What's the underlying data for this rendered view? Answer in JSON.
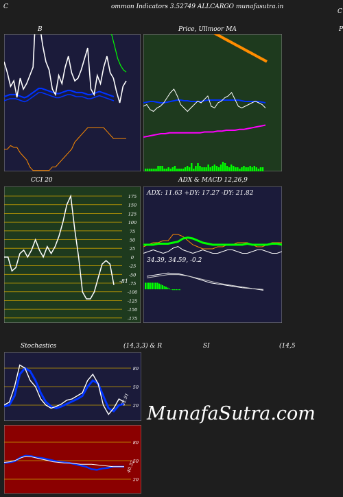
{
  "header": {
    "left_mark": "C",
    "title": "ommon  Indicators 3.52749 ALLCARGO munafasutra.in",
    "right_mark": "C"
  },
  "labels": {
    "bb_left": "B",
    "price_ma": "Price,  Ullmoor  MA",
    "price_ma_right": "P",
    "cci": "CCI 20",
    "adx_macd": "ADX  & MACD 12,26,9",
    "stoch_title": "Stochastics",
    "stoch_params": "(14,3,3) & R",
    "rsi_title": "SI",
    "rsi_params": "(14,5",
    "watermark": "MunafaSutra.com"
  },
  "colors": {
    "panel_dark": "#1b1b3a",
    "panel_green": "#1e3a1e",
    "panel_red": "#8b0000",
    "orange": "#ff8c00",
    "blue": "#0033ff",
    "bright_green": "#00ff00",
    "white": "#ffffff"
  },
  "chart_data": [
    {
      "type": "line",
      "panel": "bollinger",
      "series": [
        {
          "name": "",
          "color": "#ffffff",
          "values": [
            38,
            34,
            29,
            31,
            25,
            32,
            28,
            30,
            33,
            36,
            60,
            52,
            44,
            38,
            35,
            28,
            26,
            33,
            30,
            36,
            40,
            34,
            31,
            32,
            35,
            39,
            43,
            28,
            26,
            33,
            30,
            36,
            40,
            34,
            32,
            27,
            23,
            29,
            31
          ]
        },
        {
          "name": "",
          "color": "#0033ff",
          "values": [
            33,
            33.5,
            34,
            34,
            34,
            33.5,
            33,
            32.5,
            33,
            34,
            35,
            36,
            37,
            37,
            36.5,
            36,
            35.5,
            35,
            34.5,
            34.5,
            35,
            35.5,
            36,
            36,
            35.5,
            35,
            35,
            35,
            34.5,
            34,
            34,
            34.5,
            35,
            35.5,
            35,
            34.5,
            34,
            33.5,
            33
          ]
        },
        {
          "name": "",
          "color": "#0033ff",
          "values": [
            31,
            31.5,
            32,
            32,
            32,
            31.5,
            31,
            30.5,
            31,
            32,
            33,
            34,
            35,
            35,
            34.5,
            34,
            33.5,
            33,
            32.5,
            32.5,
            33,
            33.5,
            34,
            34,
            33.5,
            33,
            33,
            33,
            32.5,
            32,
            32,
            32.5,
            33,
            33.5,
            33,
            32.5,
            32,
            31.5,
            31
          ]
        },
        {
          "name": "",
          "color": "#00ff00",
          "values": [
            70,
            69,
            68,
            67,
            66,
            64,
            62,
            60,
            58,
            57,
            56,
            57,
            58,
            59,
            60,
            60,
            60,
            60,
            60,
            60,
            60,
            60,
            60,
            60,
            60,
            60,
            60,
            60,
            60,
            60,
            60,
            59,
            58,
            55,
            50,
            45,
            42,
            40,
            39
          ]
        },
        {
          "name": "",
          "color": "#ff8c00",
          "values": [
            12,
            12,
            13,
            12.5,
            12.5,
            11,
            10,
            9,
            7,
            6,
            6,
            6,
            6,
            6,
            6,
            7,
            7,
            8,
            9,
            10,
            11,
            12,
            14,
            15,
            16,
            17,
            18,
            18,
            18,
            18,
            18,
            18,
            17,
            16,
            15,
            15,
            15,
            15,
            15
          ]
        }
      ]
    },
    {
      "type": "line",
      "panel": "price_ma",
      "series": [
        {
          "name": "",
          "color": "#ffffff",
          "values": [
            30,
            31,
            28,
            27,
            29,
            30,
            32,
            35,
            38,
            40,
            36,
            31,
            29,
            27,
            29,
            31,
            33,
            32,
            34,
            36,
            30,
            29,
            32,
            33,
            35,
            36,
            38,
            34,
            30,
            29,
            30,
            31,
            32,
            33,
            32,
            31,
            29
          ]
        },
        {
          "name": "",
          "color": "#0033ff",
          "values": [
            30,
            30.5,
            31,
            31,
            30.5,
            30,
            30,
            30.5,
            31,
            31.5,
            32,
            32,
            31.5,
            31.5,
            31,
            31,
            31,
            31,
            31.5,
            32,
            32,
            32,
            32,
            32,
            32,
            32,
            32,
            32,
            32,
            31.5,
            31,
            31,
            31,
            31,
            31,
            30.5,
            30
          ]
        },
        {
          "name": "",
          "color": "#ff8c00",
          "values": [
            62,
            61,
            60,
            59,
            58,
            57,
            56,
            55,
            54,
            53,
            52,
            51,
            50,
            49,
            48,
            47,
            46,
            45,
            44,
            43,
            42,
            41,
            40,
            39,
            38,
            37,
            36,
            35,
            34,
            33
          ]
        },
        {
          "name": "",
          "color": "#ff00ff",
          "values": [
            20,
            20.5,
            21,
            21.5,
            22,
            22,
            22.5,
            22.5,
            22.5,
            22.5,
            22.5,
            22.5,
            22.5,
            22.5,
            23,
            23,
            23,
            23.5,
            23.5,
            24,
            24,
            24,
            24.5,
            24.5,
            25,
            25.5,
            26,
            26.5,
            27
          ]
        }
      ]
    },
    {
      "type": "line",
      "panel": "cci",
      "y_ticks": [
        175,
        150,
        125,
        100,
        75,
        50,
        25,
        0,
        -25,
        -50,
        -75,
        -100,
        -125,
        -150,
        -175
      ],
      "series": [
        {
          "name": "",
          "color": "#ffffff",
          "values": [
            0,
            0,
            -40,
            -30,
            10,
            20,
            0,
            20,
            50,
            20,
            0,
            30,
            10,
            30,
            60,
            100,
            150,
            175,
            80,
            0,
            -100,
            -120,
            -120,
            -100,
            -60,
            -20,
            -10,
            -20,
            -80
          ]
        }
      ],
      "last_value_label": "-81"
    },
    {
      "type": "line",
      "panel": "adx",
      "readout": "ADX: 11.63  +DY: 17.27  -DY: 21.82",
      "series": [
        {
          "name": "",
          "color": "#00ff00",
          "values": [
            20,
            20,
            20,
            21,
            21,
            21,
            22,
            23,
            26,
            27,
            26,
            24,
            22,
            21,
            20,
            20,
            20,
            20,
            20,
            20,
            20,
            21,
            20,
            20,
            20,
            20,
            21,
            21,
            20
          ]
        },
        {
          "name": "",
          "color": "#ff8c00",
          "values": [
            18,
            20,
            22,
            22,
            24,
            24,
            30,
            30,
            28,
            24,
            20,
            18,
            16,
            16,
            16,
            18,
            18,
            20,
            20,
            22,
            22,
            22,
            20,
            18,
            18,
            20,
            22,
            22,
            22
          ]
        },
        {
          "name": "",
          "color": "#ffffff",
          "values": [
            10,
            12,
            14,
            12,
            10,
            12,
            16,
            18,
            14,
            12,
            10,
            12,
            14,
            12,
            10,
            10,
            12,
            14,
            14,
            12,
            10,
            10,
            12,
            14,
            14,
            12,
            10,
            10,
            12
          ]
        }
      ]
    },
    {
      "type": "bar",
      "panel": "macd",
      "readout": "34.39,  34.59,  -0.2",
      "values": [
        8,
        8,
        8,
        8,
        8,
        8,
        8,
        8,
        7,
        6,
        5,
        4,
        3,
        2,
        1,
        0,
        -1,
        -1,
        -1,
        -1,
        -1
      ]
    },
    {
      "type": "line",
      "panel": "stochastics",
      "y_ticks": [
        80,
        50,
        20
      ],
      "series": [
        {
          "name": "",
          "color": "#ffffff",
          "values": [
            20,
            25,
            50,
            85,
            80,
            60,
            50,
            30,
            20,
            15,
            18,
            22,
            28,
            30,
            35,
            40,
            60,
            70,
            55,
            20,
            5,
            15,
            30,
            25
          ]
        },
        {
          "name": "",
          "color": "#0033ff",
          "values": [
            18,
            20,
            35,
            70,
            80,
            75,
            60,
            40,
            25,
            18,
            15,
            18,
            22,
            26,
            30,
            35,
            50,
            60,
            55,
            35,
            15,
            10,
            20,
            22
          ]
        }
      ],
      "last_value_label": "22.91"
    },
    {
      "type": "line",
      "panel": "rsi",
      "y_ticks": [
        80,
        50,
        20
      ],
      "series": [
        {
          "name": "",
          "color": "#ffffff",
          "values": [
            45,
            46,
            48,
            52,
            55,
            54,
            52,
            50,
            48,
            46,
            45,
            44,
            44,
            43,
            42,
            42,
            42,
            41,
            40,
            39,
            38,
            38,
            38
          ]
        },
        {
          "name": "",
          "color": "#0033ff",
          "values": [
            44,
            45,
            47,
            53,
            56,
            55,
            53,
            52,
            50,
            48,
            46,
            45,
            44,
            42,
            40,
            38,
            34,
            33,
            35,
            36,
            38,
            38,
            38
          ]
        }
      ],
      "last_value_label": "40.32"
    }
  ]
}
